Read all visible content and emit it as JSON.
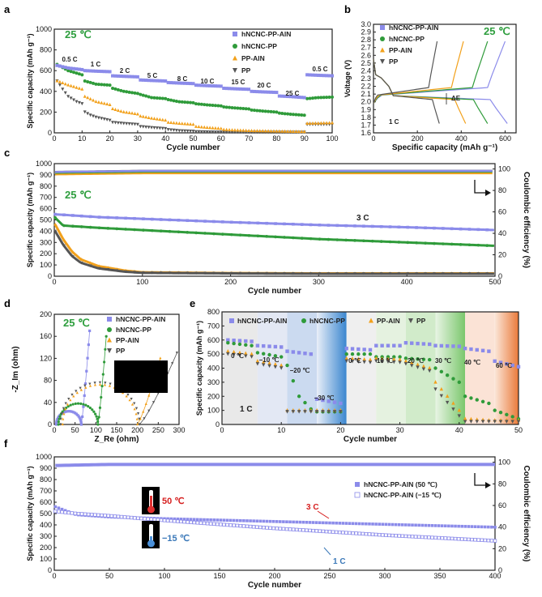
{
  "colors": {
    "hncnc_ppain": "#8b8bea",
    "hncnc_pp": "#2f9b3a",
    "pp_ain": "#f2a11c",
    "pp": "#555555",
    "green_text": "#2e9e3e",
    "red_text": "#d62020",
    "blue_text": "#3a78b8"
  },
  "chart_data": [
    {
      "panel": "a",
      "type": "scatter",
      "title": "25 ℃",
      "xlabel": "Cycle number",
      "ylabel": "Specific capacity (mAh g⁻¹)",
      "xlim": [
        0,
        100
      ],
      "ylim": [
        0,
        1000
      ],
      "xticks": [
        0,
        10,
        20,
        30,
        40,
        50,
        60,
        70,
        80,
        90,
        100
      ],
      "yticks": [
        0,
        200,
        400,
        600,
        800,
        1000
      ],
      "legend": [
        "hNCNC-PP-AlN",
        "hNCNC-PP",
        "PP-AlN",
        "PP"
      ],
      "rate_labels": [
        "0.5 C",
        "1 C",
        "2 C",
        "5 C",
        "8 C",
        "10 C",
        "15 C",
        "20 C",
        "25 C",
        "0.5 C"
      ],
      "series": [
        {
          "name": "hNCNC-PP-AlN",
          "x": [
            1,
            5,
            10,
            11,
            15,
            20,
            21,
            25,
            30,
            31,
            35,
            40,
            41,
            45,
            50,
            51,
            55,
            60,
            61,
            65,
            70,
            71,
            75,
            80,
            81,
            85,
            90,
            91,
            95,
            100
          ],
          "y": [
            650,
            625,
            610,
            600,
            595,
            590,
            550,
            545,
            540,
            510,
            505,
            500,
            485,
            480,
            475,
            460,
            455,
            450,
            430,
            425,
            420,
            400,
            395,
            390,
            355,
            350,
            340,
            560,
            555,
            550
          ]
        },
        {
          "name": "hNCNC-PP",
          "x": [
            1,
            5,
            10,
            11,
            15,
            20,
            21,
            25,
            30,
            31,
            35,
            40,
            41,
            45,
            50,
            51,
            55,
            60,
            61,
            65,
            70,
            71,
            75,
            80,
            81,
            85,
            90,
            91,
            95,
            100
          ],
          "y": [
            660,
            600,
            560,
            500,
            470,
            460,
            430,
            400,
            380,
            370,
            340,
            330,
            320,
            300,
            290,
            280,
            270,
            260,
            250,
            240,
            230,
            220,
            210,
            200,
            190,
            180,
            170,
            330,
            340,
            345
          ]
        },
        {
          "name": "PP-AlN",
          "x": [
            1,
            5,
            10,
            11,
            15,
            20,
            21,
            25,
            30,
            31,
            35,
            40,
            41,
            45,
            50,
            51,
            55,
            60,
            61,
            70,
            80,
            90,
            91,
            100
          ],
          "y": [
            500,
            460,
            420,
            350,
            300,
            270,
            230,
            200,
            180,
            160,
            140,
            120,
            100,
            90,
            80,
            60,
            50,
            40,
            30,
            20,
            15,
            10,
            90,
            95
          ]
        },
        {
          "name": "PP",
          "x": [
            1,
            3,
            5,
            8,
            10,
            11,
            13,
            15,
            20,
            21,
            25,
            30,
            31,
            35,
            40,
            41,
            45,
            50,
            51,
            60,
            70,
            80,
            90,
            91,
            100
          ],
          "y": [
            500,
            420,
            350,
            300,
            280,
            200,
            170,
            150,
            120,
            100,
            90,
            80,
            60,
            50,
            40,
            30,
            20,
            15,
            10,
            5,
            5,
            5,
            5,
            80,
            80
          ]
        }
      ]
    },
    {
      "panel": "b",
      "type": "line",
      "title": "25 ℃",
      "xlabel": "Specific capacity (mAh g⁻¹)",
      "ylabel": "Voltage (V)",
      "xlim": [
        0,
        650
      ],
      "ylim": [
        1.6,
        3.0
      ],
      "xticks": [
        0,
        200,
        400,
        600
      ],
      "yticks": [
        1.6,
        1.7,
        1.8,
        1.9,
        2.0,
        2.1,
        2.2,
        2.3,
        2.4,
        2.5,
        2.6,
        2.7,
        2.8,
        2.9,
        3.0
      ],
      "annotations": [
        "ΔE",
        "1 C"
      ],
      "legend": [
        "hNCNC-PP-AlN",
        "hNCNC-PP",
        "PP-AlN",
        "PP"
      ],
      "series": [
        {
          "name": "hNCNC-PP-AlN",
          "discharge_end": 610,
          "charge_end": 600
        },
        {
          "name": "hNCNC-PP",
          "discharge_end": 520,
          "charge_end": 520
        },
        {
          "name": "PP-AlN",
          "discharge_end": 420,
          "charge_end": 410
        },
        {
          "name": "PP",
          "discharge_end": 300,
          "charge_end": 290
        }
      ]
    },
    {
      "panel": "c",
      "type": "scatter",
      "title": "25 ℃",
      "xlabel": "Cycle number",
      "ylabel": "Specific capacity (mAh g⁻¹)",
      "y2label": "Coulombic efficiency (%)",
      "xlim": [
        0,
        500
      ],
      "ylim": [
        0,
        1000
      ],
      "y2lim": [
        0,
        105
      ],
      "xticks": [
        0,
        100,
        200,
        300,
        400,
        500
      ],
      "yticks": [
        0,
        100,
        200,
        300,
        400,
        500,
        600,
        700,
        800,
        900,
        1000
      ],
      "y2ticks": [
        0,
        20,
        40,
        60,
        80,
        100
      ],
      "rate": "3 C",
      "series": [
        {
          "name": "hNCNC-PP-AlN",
          "x": [
            1,
            50,
            100,
            200,
            300,
            400,
            500
          ],
          "y": [
            550,
            525,
            510,
            480,
            455,
            435,
            410
          ]
        },
        {
          "name": "hNCNC-PP",
          "x": [
            1,
            10,
            30,
            50,
            100,
            200,
            300,
            400,
            500
          ],
          "y": [
            520,
            450,
            440,
            430,
            410,
            370,
            330,
            300,
            270
          ]
        },
        {
          "name": "PP-AlN",
          "x": [
            1,
            10,
            20,
            30,
            50,
            80,
            100,
            200,
            300,
            400,
            500
          ],
          "y": [
            460,
            330,
            220,
            150,
            90,
            50,
            35,
            28,
            25,
            25,
            25
          ]
        },
        {
          "name": "PP",
          "x": [
            1,
            10,
            20,
            30,
            50,
            80,
            100,
            200,
            300,
            400,
            500
          ],
          "y": [
            400,
            280,
            180,
            120,
            70,
            40,
            30,
            25,
            22,
            22,
            22
          ]
        },
        {
          "name": "Coulombic efficiency",
          "x": [
            1,
            100,
            200,
            300,
            400,
            500
          ],
          "y": [
            97,
            98,
            98,
            98,
            98,
            98
          ]
        }
      ]
    },
    {
      "panel": "d",
      "type": "line",
      "title": "25 ℃",
      "xlabel": "Z_Re (ohm)",
      "ylabel": "-Z_Im (ohm)",
      "xlim": [
        0,
        300
      ],
      "ylim": [
        0,
        200
      ],
      "xticks": [
        0,
        50,
        100,
        150,
        200,
        250,
        300
      ],
      "yticks": [
        0,
        40,
        80,
        120,
        160,
        200
      ],
      "legend": [
        "hNCNC-PP-AlN",
        "hNCNC-PP",
        "PP-AlN",
        "PP"
      ],
      "series": [
        {
          "name": "hNCNC-PP-AlN",
          "semicircle": [
            5,
            65
          ],
          "tail_end": [
            85,
            170
          ]
        },
        {
          "name": "hNCNC-PP",
          "semicircle": [
            10,
            105
          ],
          "tail_end": [
            125,
            160
          ]
        },
        {
          "name": "PP-AlN",
          "semicircle": [
            20,
            200
          ],
          "tail_end": [
            255,
            120
          ]
        },
        {
          "name": "PP",
          "semicircle": [
            15,
            205
          ],
          "tail_end": [
            295,
            130
          ]
        }
      ]
    },
    {
      "panel": "e",
      "type": "scatter",
      "title": "",
      "xlabel": "Cycle number",
      "ylabel": "Specific capacity (mAh g⁻¹)",
      "xlim": [
        0,
        50
      ],
      "ylim": [
        0,
        800
      ],
      "xticks": [
        0,
        10,
        20,
        30,
        40,
        50
      ],
      "yticks": [
        0,
        100,
        200,
        300,
        400,
        500,
        600,
        700,
        800
      ],
      "rate": "1 C",
      "temperatures": [
        "0 ℃",
        "−10 ℃",
        "−20 ℃",
        "−30 ℃",
        "0 ℃",
        "10 ℃",
        "20 ℃",
        "30 ℃",
        "40 ℃",
        "60 ℃"
      ],
      "legend": [
        "hNCNC-PP-AlN",
        "hNCNC-PP",
        "PP-AlN",
        "PP"
      ],
      "series": [
        {
          "name": "hNCNC-PP-AlN",
          "x": [
            1,
            5,
            6,
            10,
            11,
            15,
            16,
            20,
            21,
            25,
            26,
            30,
            31,
            35,
            36,
            40,
            41,
            45,
            46,
            50
          ],
          "y": [
            600,
            590,
            560,
            550,
            520,
            500,
            180,
            150,
            540,
            530,
            560,
            560,
            580,
            570,
            560,
            555,
            540,
            520,
            450,
            410
          ]
        },
        {
          "name": "hNCNC-PP",
          "x": [
            1,
            5,
            6,
            10,
            11,
            13,
            15,
            16,
            20,
            21,
            25,
            26,
            30,
            31,
            35,
            36,
            40,
            41,
            45,
            46,
            50
          ],
          "y": [
            580,
            560,
            510,
            480,
            420,
            200,
            110,
            90,
            90,
            500,
            500,
            480,
            480,
            470,
            460,
            400,
            300,
            200,
            150,
            100,
            40
          ]
        },
        {
          "name": "PP-AlN",
          "x": [
            1,
            5,
            6,
            10,
            11,
            15,
            16,
            20,
            21,
            25,
            26,
            30,
            31,
            35,
            36,
            40,
            41,
            45,
            46,
            50
          ],
          "y": [
            520,
            500,
            450,
            420,
            100,
            100,
            100,
            100,
            470,
            460,
            470,
            460,
            450,
            400,
            300,
            100,
            40,
            30,
            30,
            30
          ]
        },
        {
          "name": "PP",
          "x": [
            1,
            5,
            6,
            10,
            11,
            15,
            16,
            20,
            21,
            25,
            26,
            30,
            31,
            35,
            36,
            40,
            41,
            45,
            46,
            50
          ],
          "y": [
            500,
            480,
            430,
            400,
            90,
            90,
            90,
            90,
            450,
            440,
            450,
            440,
            430,
            380,
            250,
            60,
            20,
            20,
            20,
            20
          ]
        }
      ]
    },
    {
      "panel": "f",
      "type": "scatter",
      "title": "",
      "xlabel": "Cycle number",
      "ylabel": "Specific capacity (mAh g⁻¹)",
      "y2label": "Coulombic efficiency (%)",
      "xlim": [
        0,
        400
      ],
      "ylim": [
        0,
        1000
      ],
      "y2lim": [
        0,
        105
      ],
      "xticks": [
        0,
        50,
        100,
        150,
        200,
        250,
        300,
        350,
        400
      ],
      "yticks": [
        0,
        100,
        200,
        300,
        400,
        500,
        600,
        700,
        800,
        900,
        1000
      ],
      "y2ticks": [
        0,
        20,
        40,
        60,
        80,
        100
      ],
      "annotations": [
        "50 ℃",
        "−15 ℃",
        "3 C",
        "1 C"
      ],
      "legend": [
        "hNCNC-PP-AlN (50 ℃)",
        "hNCNC-PP-AlN (−15 ℃)"
      ],
      "series": [
        {
          "name": "hNCNC-PP-AlN (50 ℃)",
          "x": [
            1,
            20,
            50,
            100,
            200,
            300,
            400
          ],
          "y": [
            560,
            490,
            470,
            455,
            430,
            405,
            380
          ]
        },
        {
          "name": "hNCNC-PP-AlN (−15 ℃)",
          "x": [
            1,
            20,
            50,
            100,
            200,
            300,
            400
          ],
          "y": [
            520,
            500,
            480,
            440,
            370,
            310,
            260
          ]
        },
        {
          "name": "Coulombic efficiency",
          "x": [
            1,
            50,
            100,
            200,
            300,
            400
          ],
          "y": [
            97,
            98,
            98,
            98,
            98,
            98
          ]
        }
      ]
    }
  ]
}
